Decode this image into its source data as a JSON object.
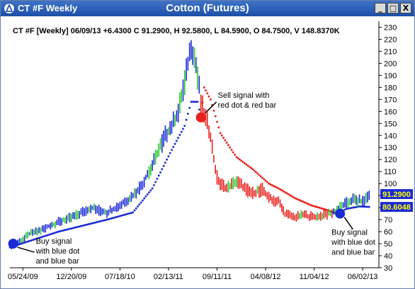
{
  "window": {
    "title": "CT #F Weekly",
    "controls": [
      "_",
      "□",
      "X"
    ]
  },
  "chart_data": {
    "type": "line",
    "title": "Cotton (Futures)",
    "info_line": "CT #F [Weekly] 06/09/13  +6.4300 C 91.2900, H 92.5800, L 84.5900, O 84.7500, V 148.8370K",
    "x_tick_labels": [
      "05/24/09",
      "12/20/09",
      "07/18/10",
      "02/13/11",
      "09/11/11",
      "04/08/12",
      "11/04/12",
      "06/02/13"
    ],
    "y_ticks": [
      30,
      40,
      50,
      60,
      70,
      80,
      90,
      100,
      110,
      120,
      130,
      140,
      150,
      160,
      170,
      180,
      190,
      200,
      210,
      220,
      230
    ],
    "ylim": [
      30,
      235
    ],
    "grid": false,
    "price_labels": [
      {
        "value": "91.2900",
        "y": 91.29,
        "color": "#1a2bd6"
      },
      {
        "value": "80.6048",
        "y": 80.6,
        "color": "#1a2bd6"
      }
    ],
    "price_series_keypoints": [
      {
        "x": 0,
        "y": 48
      },
      {
        "x": 6,
        "y": 52
      },
      {
        "x": 12,
        "y": 58
      },
      {
        "x": 20,
        "y": 62
      },
      {
        "x": 30,
        "y": 68
      },
      {
        "x": 40,
        "y": 73
      },
      {
        "x": 50,
        "y": 80
      },
      {
        "x": 60,
        "y": 76
      },
      {
        "x": 68,
        "y": 82
      },
      {
        "x": 76,
        "y": 90
      },
      {
        "x": 82,
        "y": 100
      },
      {
        "x": 88,
        "y": 115
      },
      {
        "x": 92,
        "y": 128
      },
      {
        "x": 96,
        "y": 140
      },
      {
        "x": 100,
        "y": 148
      },
      {
        "x": 104,
        "y": 160
      },
      {
        "x": 108,
        "y": 185
      },
      {
        "x": 110,
        "y": 200
      },
      {
        "x": 112,
        "y": 215
      },
      {
        "x": 114,
        "y": 205
      },
      {
        "x": 116,
        "y": 190
      },
      {
        "x": 118,
        "y": 168
      },
      {
        "x": 120,
        "y": 158
      },
      {
        "x": 122,
        "y": 150
      },
      {
        "x": 124,
        "y": 140
      },
      {
        "x": 126,
        "y": 120
      },
      {
        "x": 128,
        "y": 105
      },
      {
        "x": 130,
        "y": 100
      },
      {
        "x": 134,
        "y": 96
      },
      {
        "x": 140,
        "y": 102
      },
      {
        "x": 146,
        "y": 95
      },
      {
        "x": 150,
        "y": 92
      },
      {
        "x": 156,
        "y": 95
      },
      {
        "x": 160,
        "y": 88
      },
      {
        "x": 166,
        "y": 85
      },
      {
        "x": 170,
        "y": 75
      },
      {
        "x": 176,
        "y": 72
      },
      {
        "x": 182,
        "y": 74
      },
      {
        "x": 188,
        "y": 72
      },
      {
        "x": 194,
        "y": 74
      },
      {
        "x": 200,
        "y": 76
      },
      {
        "x": 206,
        "y": 82
      },
      {
        "x": 212,
        "y": 87
      },
      {
        "x": 218,
        "y": 85
      },
      {
        "x": 222,
        "y": 91.29
      }
    ],
    "dot_series_keypoints": [
      {
        "x": 0,
        "y": 47
      },
      {
        "x": 30,
        "y": 60
      },
      {
        "x": 60,
        "y": 70
      },
      {
        "x": 76,
        "y": 76
      },
      {
        "x": 88,
        "y": 96
      },
      {
        "x": 100,
        "y": 128
      },
      {
        "x": 108,
        "y": 148
      },
      {
        "x": 112,
        "y": 168
      },
      {
        "x": 116,
        "y": 168
      },
      {
        "x": 118,
        "y": 155
      },
      {
        "x": 120,
        "y": 180
      },
      {
        "x": 124,
        "y": 170
      },
      {
        "x": 130,
        "y": 142
      },
      {
        "x": 140,
        "y": 122
      },
      {
        "x": 150,
        "y": 112
      },
      {
        "x": 160,
        "y": 100
      },
      {
        "x": 166,
        "y": 96
      },
      {
        "x": 176,
        "y": 88
      },
      {
        "x": 186,
        "y": 82
      },
      {
        "x": 196,
        "y": 78
      },
      {
        "x": 202,
        "y": 75
      },
      {
        "x": 208,
        "y": 79
      },
      {
        "x": 216,
        "y": 81
      },
      {
        "x": 222,
        "y": 80.6
      }
    ],
    "signals": [
      {
        "type": "buy",
        "x": 2,
        "y": 50,
        "color": "#1a2bd6",
        "label": [
          "Buy signal",
          "with blue dot",
          "and blue bar"
        ]
      },
      {
        "type": "sell",
        "x": 118,
        "y": 155,
        "color": "#e8201c",
        "label": [
          "Sell signal with",
          "red dot & red bar"
        ]
      },
      {
        "type": "buy",
        "x": 204,
        "y": 75,
        "color": "#1a2bd6",
        "label": [
          "Buy signal",
          "with blue dot",
          "and blue bar"
        ]
      }
    ],
    "x_tick_positions": [
      8,
      38,
      68,
      98,
      128,
      158,
      188,
      218
    ],
    "xlim": [
      0,
      228
    ]
  }
}
